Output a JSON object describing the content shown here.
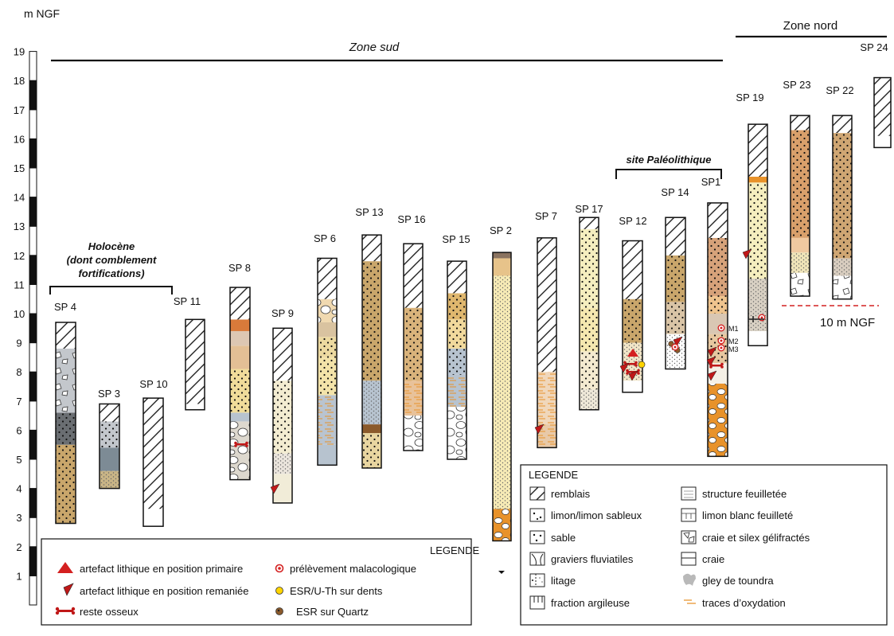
{
  "axis": {
    "unit": "m NGF",
    "ticks": [
      "1",
      "2",
      "3",
      "4",
      "5",
      "6",
      "7",
      "8",
      "9",
      "10",
      "11",
      "12",
      "13",
      "14",
      "15",
      "16",
      "17",
      "18",
      "19"
    ]
  },
  "zones": {
    "sud": "Zone sud",
    "nord": "Zone nord",
    "paleo": "site Paléolithique",
    "holocene": [
      "Holocène",
      "(dont comblement",
      "fortifications)"
    ]
  },
  "ref_level": "10 m NGF",
  "sections": [
    "SP 4",
    "SP 3",
    "SP 10",
    "SP 11",
    "SP 8",
    "SP 9",
    "SP 6",
    "SP 13",
    "SP 16",
    "SP 15",
    "SP 2",
    "SP 7",
    "SP 17",
    "SP 12",
    "SP 14",
    "SP1",
    "SP 19",
    "SP 23",
    "SP 22",
    "SP 24"
  ],
  "samples": [
    "M1",
    "M2",
    "M3"
  ],
  "legend_symbols": {
    "title": "LEGENDE",
    "items": [
      "artefact lithique en position primaire",
      "artefact lithique en position remaniée",
      "reste osseux",
      "prélèvement malacologique",
      "ESR/U-Th sur dents",
      "ESR sur Quartz"
    ]
  },
  "legend_lithology": {
    "title": "LEGENDE",
    "items": [
      "remblais",
      "limon/limon sableux",
      "sable",
      "graviers fluviatiles",
      "litage",
      "fraction argileuse",
      "structure feuilletée",
      "limon blanc feuilleté",
      "craie et silex gélifractés",
      "craie",
      "gley de toundra",
      "traces d’oxydation"
    ]
  },
  "colors": {
    "hatch": "#222222",
    "tan": "#c9a66b",
    "light_yellow": "#f4ebb4",
    "grey": "#c3c7cc",
    "dark_grey": "#6a6e72",
    "blue_grey": "#b7c3cf",
    "orange": "#e8922a",
    "salmon": "#e8b38a",
    "red": "#d42020",
    "yellow": "#ffd400",
    "brown": "#8b5a2b"
  }
}
